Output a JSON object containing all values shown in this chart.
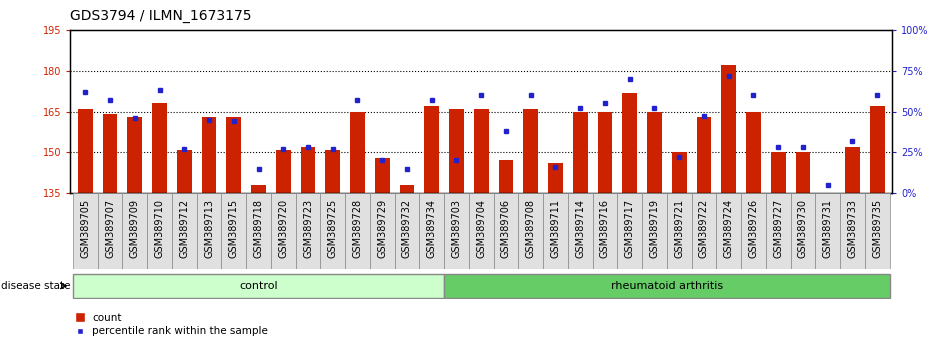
{
  "title": "GDS3794 / ILMN_1673175",
  "categories": [
    "GSM389705",
    "GSM389707",
    "GSM389709",
    "GSM389710",
    "GSM389712",
    "GSM389713",
    "GSM389715",
    "GSM389718",
    "GSM389720",
    "GSM389723",
    "GSM389725",
    "GSM389728",
    "GSM389729",
    "GSM389732",
    "GSM389734",
    "GSM389703",
    "GSM389704",
    "GSM389706",
    "GSM389708",
    "GSM389711",
    "GSM389714",
    "GSM389716",
    "GSM389717",
    "GSM389719",
    "GSM389721",
    "GSM389722",
    "GSM389724",
    "GSM389726",
    "GSM389727",
    "GSM389730",
    "GSM389731",
    "GSM389733",
    "GSM389735"
  ],
  "counts": [
    166,
    164,
    163,
    168,
    151,
    163,
    163,
    138,
    151,
    152,
    151,
    165,
    148,
    138,
    167,
    166,
    166,
    147,
    166,
    146,
    165,
    165,
    172,
    165,
    150,
    163,
    182,
    165,
    150,
    150,
    135,
    152,
    167
  ],
  "percentile_ranks": [
    62,
    57,
    46,
    63,
    27,
    45,
    44,
    15,
    27,
    28,
    27,
    57,
    20,
    15,
    57,
    20,
    60,
    38,
    60,
    16,
    52,
    55,
    70,
    52,
    22,
    47,
    72,
    60,
    28,
    28,
    5,
    32,
    60
  ],
  "control_count": 15,
  "rheumatoid_count": 18,
  "ylim_left": [
    135,
    195
  ],
  "ylim_right": [
    0,
    100
  ],
  "yticks_left": [
    135,
    150,
    165,
    180,
    195
  ],
  "yticks_right": [
    0,
    25,
    50,
    75,
    100
  ],
  "grid_values": [
    150,
    165,
    180
  ],
  "bar_color_red": "#cc2200",
  "bar_color_blue": "#2222cc",
  "control_color": "#ccffcc",
  "rheumatoid_color": "#66cc66",
  "bar_width": 0.6,
  "title_fontsize": 10,
  "tick_fontsize": 7,
  "axis_label_color_left": "#cc2200",
  "axis_label_color_right": "#2222cc",
  "tick_bg_color": "#e0e0e0"
}
